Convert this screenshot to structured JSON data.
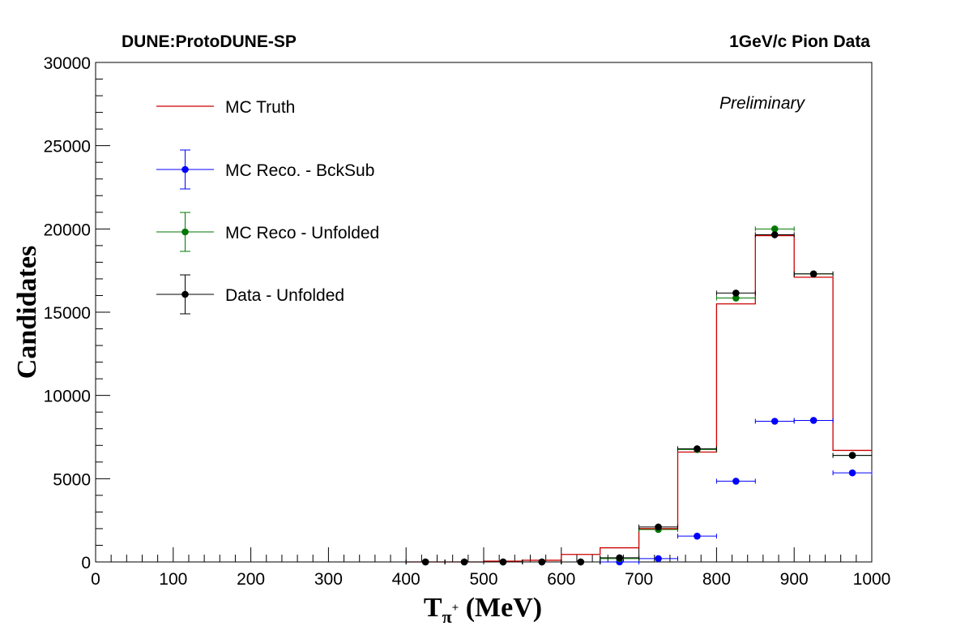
{
  "header": {
    "left": "DUNE:ProtoDUNE-SP",
    "right": "1GeV/c Pion Data",
    "preliminary": "Preliminary"
  },
  "colors": {
    "mc_truth": "#cc0000",
    "mc_reco_bcksub": "#0000ff",
    "mc_reco_unfolded": "#007700",
    "data_unfolded": "#000000"
  },
  "chart_data": {
    "type": "histogram",
    "xlabel_main": "T",
    "xlabel_sub": "π",
    "xlabel_sup": "+",
    "xlabel_unit": " (MeV)",
    "ylabel": "Candidates",
    "xlim": [
      0,
      1000
    ],
    "ylim": [
      0,
      30000
    ],
    "x_ticks": [
      "0",
      "100",
      "200",
      "300",
      "400",
      "500",
      "600",
      "700",
      "800",
      "900",
      "1000"
    ],
    "y_ticks": [
      "0",
      "5000",
      "10000",
      "15000",
      "20000",
      "25000",
      "30000"
    ],
    "bin_edges": [
      400,
      450,
      500,
      550,
      600,
      650,
      700,
      750,
      800,
      850,
      900,
      950,
      1000
    ],
    "legend_position": "top-left",
    "series": [
      {
        "name": "MC Truth",
        "style": "step",
        "values": [
          0,
          0,
          50,
          100,
          450,
          850,
          2000,
          6600,
          15500,
          19600,
          17100,
          6700
        ]
      },
      {
        "name": "MC Reco. - BckSub",
        "style": "points",
        "values": [
          0,
          0,
          0,
          0,
          0,
          0,
          200,
          1550,
          4850,
          8450,
          8500,
          5350
        ]
      },
      {
        "name": "MC Reco - Unfolded",
        "style": "points",
        "values": [
          0,
          0,
          0,
          0,
          0,
          200,
          1950,
          6750,
          15850,
          20000,
          17300,
          6400
        ]
      },
      {
        "name": "Data - Unfolded",
        "style": "points",
        "values": [
          0,
          0,
          0,
          0,
          0,
          250,
          2100,
          6800,
          16150,
          19650,
          17300,
          6400
        ]
      }
    ]
  }
}
